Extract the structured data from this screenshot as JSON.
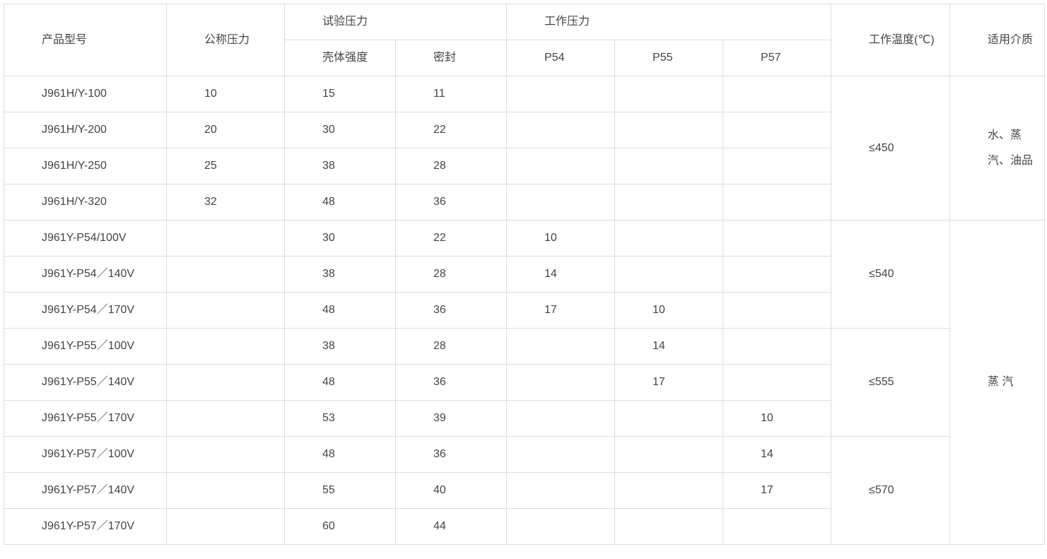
{
  "header": {
    "model": "产品型号",
    "nominal": "公称压力",
    "test": "试验压力",
    "shell": "壳体强度",
    "seal": "密封",
    "working": "工作压力",
    "p54": "P54",
    "p55": "P55",
    "p57": "P57",
    "temp": "工作温度(℃)",
    "medium": "适用介质"
  },
  "rows": [
    {
      "model": "J961H/Y-100",
      "nominal": "10",
      "shell": "15",
      "seal": "11",
      "p54": "",
      "p55": "",
      "p57": ""
    },
    {
      "model": "J961H/Y-200",
      "nominal": "20",
      "shell": "30",
      "seal": "22",
      "p54": "",
      "p55": "",
      "p57": ""
    },
    {
      "model": "J961H/Y-250",
      "nominal": "25",
      "shell": "38",
      "seal": "28",
      "p54": "",
      "p55": "",
      "p57": ""
    },
    {
      "model": "J961H/Y-320",
      "nominal": "32",
      "shell": "48",
      "seal": "36",
      "p54": "",
      "p55": "",
      "p57": ""
    },
    {
      "model": "J961Y-P54/100V",
      "nominal": "",
      "shell": "30",
      "seal": "22",
      "p54": "10",
      "p55": "",
      "p57": ""
    },
    {
      "model": "J961Y-P54／140V",
      "nominal": "",
      "shell": "38",
      "seal": "28",
      "p54": "14",
      "p55": "",
      "p57": ""
    },
    {
      "model": "J961Y-P54／170V",
      "nominal": "",
      "shell": "48",
      "seal": "36",
      "p54": "17",
      "p55": "10",
      "p57": ""
    },
    {
      "model": "J961Y-P55／100V",
      "nominal": "",
      "shell": "38",
      "seal": "28",
      "p54": "",
      "p55": "14",
      "p57": ""
    },
    {
      "model": "J961Y-P55／140V",
      "nominal": "",
      "shell": "48",
      "seal": "36",
      "p54": "",
      "p55": "17",
      "p57": ""
    },
    {
      "model": "J961Y-P55／170V",
      "nominal": "",
      "shell": "53",
      "seal": "39",
      "p54": "",
      "p55": "",
      "p57": "10"
    },
    {
      "model": "J961Y-P57／100V",
      "nominal": "",
      "shell": "48",
      "seal": "36",
      "p54": "",
      "p55": "",
      "p57": "14"
    },
    {
      "model": "J961Y-P57／140V",
      "nominal": "",
      "shell": "55",
      "seal": "40",
      "p54": "",
      "p55": "",
      "p57": "17"
    },
    {
      "model": "J961Y-P57／170V",
      "nominal": "",
      "shell": "60",
      "seal": "44",
      "p54": "",
      "p55": "",
      "p57": ""
    }
  ],
  "temp_groups": [
    {
      "value": "≤450",
      "span": 4
    },
    {
      "value": "≤540",
      "span": 3
    },
    {
      "value": "≤555",
      "span": 3
    },
    {
      "value": "≤570",
      "span": 3
    }
  ],
  "medium_groups": [
    {
      "value": "水、蒸汽、油品",
      "span": 4
    },
    {
      "value": "蒸 汽",
      "span": 9
    }
  ]
}
